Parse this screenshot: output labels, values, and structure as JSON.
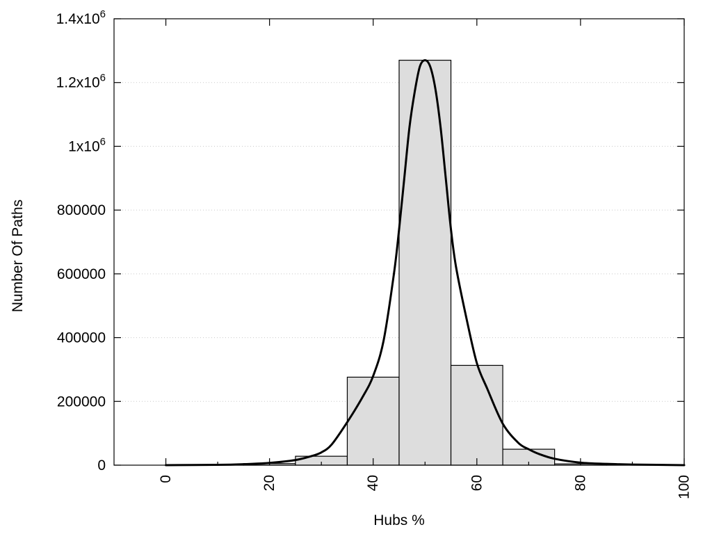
{
  "chart_data": {
    "type": "bar",
    "xlabel": "Hubs %",
    "ylabel": "Number Of Paths",
    "xlim": [
      -10,
      100
    ],
    "ylim": [
      0,
      1400000
    ],
    "x_ticks": [
      0,
      20,
      40,
      60,
      80,
      100
    ],
    "y_ticks": [
      {
        "value": 0,
        "label": "0"
      },
      {
        "value": 200000,
        "label": "200000"
      },
      {
        "value": 400000,
        "label": "400000"
      },
      {
        "value": 600000,
        "label": "600000"
      },
      {
        "value": 800000,
        "label": "800000"
      },
      {
        "value": 1000000,
        "label": "1x10",
        "sup": "6"
      },
      {
        "value": 1200000,
        "label": "1.2x10",
        "sup": "6"
      },
      {
        "value": 1400000,
        "label": "1.4x10",
        "sup": "6"
      }
    ],
    "bin_width": 10,
    "bars": [
      {
        "x": 0,
        "value": 0
      },
      {
        "x": 10,
        "value": 500
      },
      {
        "x": 20,
        "value": 5000
      },
      {
        "x": 30,
        "value": 28000
      },
      {
        "x": 40,
        "value": 276000
      },
      {
        "x": 50,
        "value": 1270000
      },
      {
        "x": 60,
        "value": 313000
      },
      {
        "x": 70,
        "value": 50000
      },
      {
        "x": 80,
        "value": 4000
      },
      {
        "x": 90,
        "value": 500
      }
    ],
    "curve": {
      "x": [
        0,
        10,
        15,
        20,
        25,
        28,
        30,
        32,
        35,
        38,
        40,
        42,
        44,
        45,
        46,
        47,
        48,
        49,
        50,
        51,
        52,
        53,
        54,
        55,
        56,
        58,
        60,
        62,
        65,
        68,
        70,
        72,
        75,
        80,
        85,
        90,
        100
      ],
      "y": [
        0,
        1000,
        3000,
        7000,
        16000,
        28000,
        40000,
        65000,
        135000,
        215000,
        280000,
        390000,
        600000,
        740000,
        900000,
        1060000,
        1170000,
        1250000,
        1270000,
        1250000,
        1180000,
        1060000,
        900000,
        740000,
        620000,
        460000,
        320000,
        240000,
        130000,
        70000,
        50000,
        35000,
        20000,
        8000,
        4000,
        2000,
        0
      ]
    },
    "grid": "horizontal-dotted",
    "legend": "none"
  }
}
